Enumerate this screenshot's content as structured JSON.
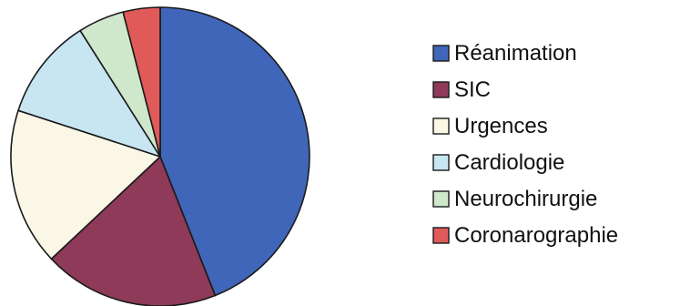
{
  "chart_data": {
    "type": "pie",
    "title": "",
    "legend_position": "right",
    "slices": [
      {
        "name": "Réanimation",
        "value": 44,
        "color": "#3f66b8"
      },
      {
        "name": "SIC",
        "value": 19,
        "color": "#8e3a58"
      },
      {
        "name": "Urgences",
        "value": 17,
        "color": "#fbf7e6"
      },
      {
        "name": "Cardiologie",
        "value": 11,
        "color": "#c7e6f2"
      },
      {
        "name": "Neurochirurgie",
        "value": 5,
        "color": "#cfe7cb"
      },
      {
        "name": "Coronarographie",
        "value": 4,
        "color": "#e05a5a"
      }
    ]
  }
}
